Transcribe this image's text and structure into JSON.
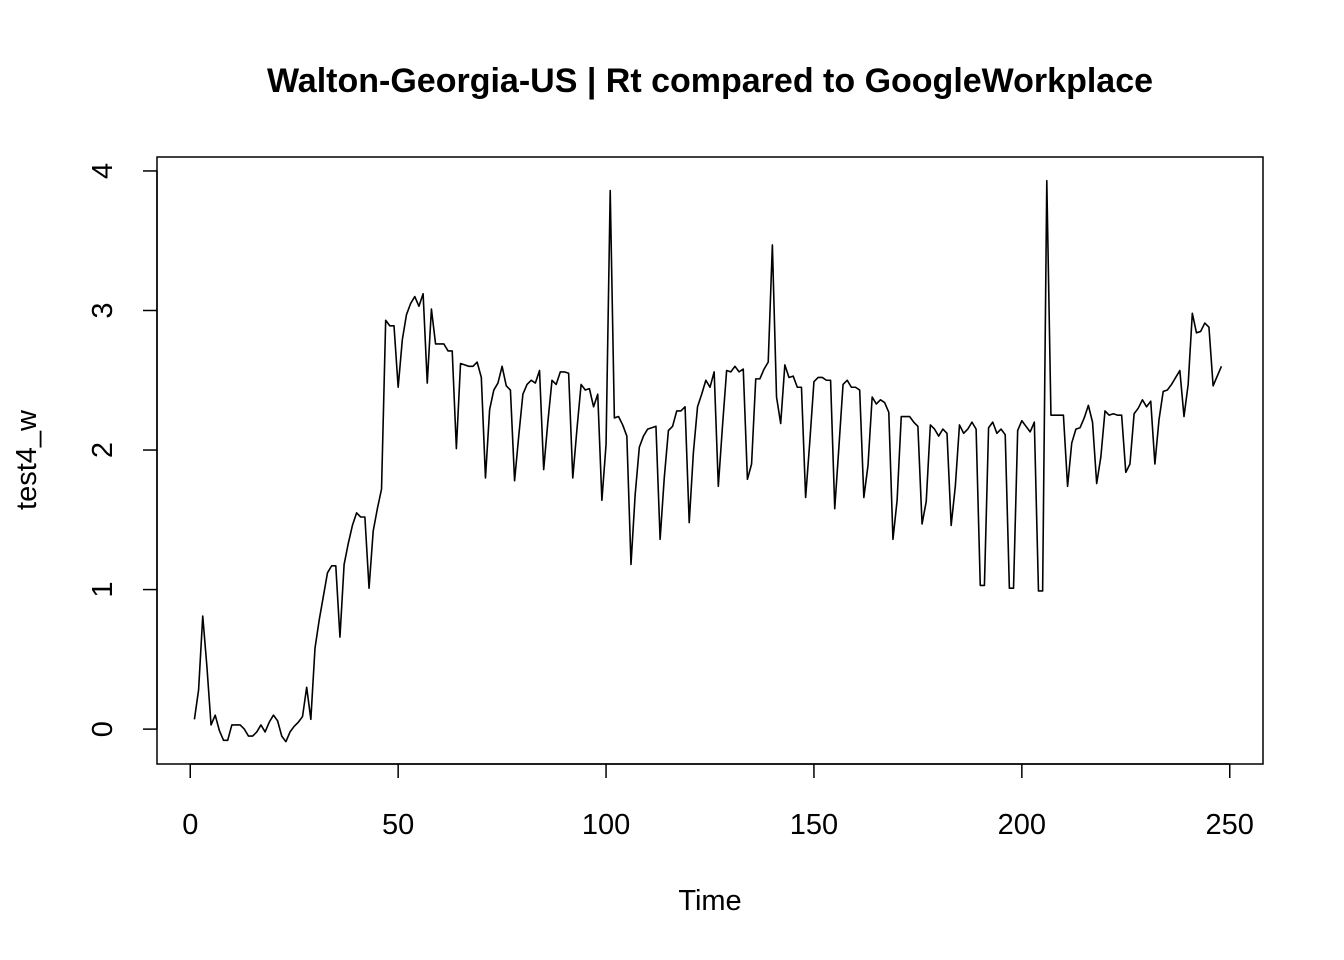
{
  "chart_data": {
    "type": "line",
    "title": "Walton-Georgia-US | Rt compared to GoogleWorkplace",
    "xlabel": "Time",
    "ylabel": "test4_w",
    "xlim": [
      -8,
      258
    ],
    "ylim": [
      -0.25,
      4.1
    ],
    "xticks": [
      0,
      50,
      100,
      150,
      200,
      250
    ],
    "yticks": [
      0,
      1,
      2,
      3,
      4
    ],
    "grid": false,
    "legend": "none",
    "line_color": "#000000",
    "series": [
      {
        "x": [
          1,
          2,
          3,
          4,
          5,
          6,
          7,
          8,
          9,
          10,
          11,
          12,
          13,
          14,
          15,
          16,
          17,
          18,
          19,
          20,
          21,
          22,
          23,
          24,
          25,
          26,
          27,
          28,
          29,
          30,
          31,
          32,
          33,
          34,
          35,
          36,
          37,
          38,
          39,
          40,
          41,
          42,
          43,
          44,
          45,
          46,
          47,
          48,
          49,
          50,
          51,
          52,
          53,
          54,
          55,
          56,
          57,
          58,
          59,
          60,
          61,
          62,
          63,
          64,
          65,
          66,
          67,
          68,
          69,
          70,
          71,
          72,
          73,
          74,
          75,
          76,
          77,
          78,
          79,
          80,
          81,
          82,
          83,
          84,
          85,
          86,
          87,
          88,
          89,
          90,
          91,
          92,
          93,
          94,
          95,
          96,
          97,
          98,
          99,
          100,
          101,
          102,
          103,
          104,
          105,
          106,
          107,
          108,
          109,
          110,
          111,
          112,
          113,
          114,
          115,
          116,
          117,
          118,
          119,
          120,
          121,
          122,
          123,
          124,
          125,
          126,
          127,
          128,
          129,
          130,
          131,
          132,
          133,
          134,
          135,
          136,
          137,
          138,
          139,
          140,
          141,
          142,
          143,
          144,
          145,
          146,
          147,
          148,
          149,
          150,
          151,
          152,
          153,
          154,
          155,
          156,
          157,
          158,
          159,
          160,
          161,
          162,
          163,
          164,
          165,
          166,
          167,
          168,
          169,
          170,
          171,
          172,
          173,
          174,
          175,
          176,
          177,
          178,
          179,
          180,
          181,
          182,
          183,
          184,
          185,
          186,
          187,
          188,
          189,
          190,
          191,
          192,
          193,
          194,
          195,
          196,
          197,
          198,
          199,
          200,
          201,
          202,
          203,
          204,
          205,
          206,
          207,
          208,
          209,
          210,
          211,
          212,
          213,
          214,
          215,
          216,
          217,
          218,
          219,
          220,
          221,
          222,
          223,
          224,
          225,
          226,
          227,
          228,
          229,
          230,
          231,
          232,
          233,
          234,
          235,
          236,
          237,
          238,
          239,
          240,
          241,
          242,
          243,
          244,
          245,
          246,
          247,
          248
        ],
        "values": [
          0.07,
          0.28,
          0.81,
          0.45,
          0.03,
          0.1,
          -0.01,
          -0.08,
          -0.08,
          0.03,
          0.03,
          0.03,
          0.0,
          -0.05,
          -0.05,
          -0.02,
          0.03,
          -0.02,
          0.05,
          0.1,
          0.06,
          -0.05,
          -0.09,
          -0.02,
          0.02,
          0.05,
          0.09,
          0.3,
          0.07,
          0.58,
          0.78,
          0.95,
          1.12,
          1.17,
          1.17,
          0.66,
          1.18,
          1.33,
          1.46,
          1.55,
          1.52,
          1.52,
          1.01,
          1.42,
          1.58,
          1.72,
          2.93,
          2.89,
          2.89,
          2.45,
          2.79,
          2.97,
          3.05,
          3.1,
          3.03,
          3.12,
          2.48,
          3.01,
          2.76,
          2.76,
          2.76,
          2.71,
          2.71,
          2.01,
          2.62,
          2.61,
          2.6,
          2.6,
          2.63,
          2.52,
          1.8,
          2.29,
          2.43,
          2.48,
          2.6,
          2.46,
          2.43,
          1.78,
          2.1,
          2.4,
          2.47,
          2.5,
          2.48,
          2.57,
          1.86,
          2.2,
          2.5,
          2.47,
          2.56,
          2.56,
          2.55,
          1.8,
          2.15,
          2.47,
          2.43,
          2.44,
          2.31,
          2.4,
          1.64,
          2.04,
          3.86,
          2.23,
          2.24,
          2.18,
          2.1,
          1.18,
          1.68,
          2.02,
          2.1,
          2.15,
          2.16,
          2.17,
          1.36,
          1.8,
          2.14,
          2.17,
          2.28,
          2.28,
          2.31,
          1.48,
          1.98,
          2.31,
          2.4,
          2.5,
          2.45,
          2.56,
          1.74,
          2.17,
          2.57,
          2.56,
          2.6,
          2.56,
          2.58,
          1.79,
          1.9,
          2.51,
          2.51,
          2.58,
          2.63,
          3.47,
          2.38,
          2.19,
          2.61,
          2.52,
          2.53,
          2.45,
          2.45,
          1.66,
          2.06,
          2.49,
          2.52,
          2.52,
          2.5,
          2.5,
          1.58,
          2.02,
          2.47,
          2.5,
          2.45,
          2.45,
          2.43,
          1.66,
          1.89,
          2.38,
          2.33,
          2.36,
          2.34,
          2.27,
          1.36,
          1.64,
          2.24,
          2.24,
          2.24,
          2.2,
          2.17,
          1.47,
          1.63,
          2.18,
          2.15,
          2.1,
          2.15,
          2.12,
          1.46,
          1.74,
          2.18,
          2.12,
          2.15,
          2.2,
          2.15,
          1.03,
          1.03,
          2.16,
          2.2,
          2.12,
          2.15,
          2.11,
          1.01,
          1.01,
          2.14,
          2.21,
          2.17,
          2.13,
          2.2,
          0.99,
          0.99,
          3.93,
          2.25,
          2.25,
          2.25,
          2.25,
          1.74,
          2.05,
          2.15,
          2.16,
          2.23,
          2.32,
          2.2,
          1.76,
          1.95,
          2.28,
          2.25,
          2.26,
          2.25,
          2.25,
          1.84,
          1.9,
          2.26,
          2.3,
          2.36,
          2.31,
          2.35,
          1.9,
          2.22,
          2.42,
          2.43,
          2.47,
          2.52,
          2.57,
          2.24,
          2.47,
          2.98,
          2.84,
          2.85,
          2.91,
          2.88,
          2.46,
          2.53,
          2.6
        ]
      }
    ]
  }
}
